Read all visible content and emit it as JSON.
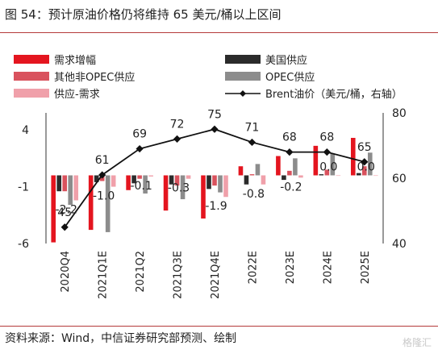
{
  "title": "图 54：预计原油价格仍将维持 65 美元/桶以上区间",
  "source": "资料来源：Wind，中信证券研究部预测、绘制",
  "watermark": "格隆汇",
  "colors": {
    "demand": "#e4151f",
    "us": "#2b2b2b",
    "nonopec": "#d9525d",
    "opec": "#8c8c8c",
    "balance": "#f0a0aa",
    "brent": "#111111",
    "rule": "#b43a3a"
  },
  "chart_data": {
    "type": "bar",
    "categories": [
      "2020Q4",
      "2021Q1E",
      "2021Q2",
      "2021Q3E",
      "2021Q4E",
      "2022E",
      "2023E",
      "2024E",
      "2025E"
    ],
    "y_left": {
      "ticks": [
        4,
        -1,
        -6
      ],
      "ylim": [
        -6,
        5.5
      ]
    },
    "y_right": {
      "ticks": [
        80,
        60,
        40
      ],
      "ylim": [
        40,
        80
      ]
    },
    "series": [
      {
        "name": "需求增幅",
        "key": "demand",
        "values": [
          -5.9,
          -4.8,
          -1.3,
          -3.1,
          -3.8,
          0.8,
          1.7,
          2.6,
          3.3
        ]
      },
      {
        "name": "美国供应",
        "key": "us",
        "values": [
          -1.4,
          -0.6,
          -0.7,
          -0.8,
          -1.2,
          -0.8,
          -0.4,
          0.1,
          0.2
        ]
      },
      {
        "name": "其他非OPEC供应",
        "key": "nonopec",
        "values": [
          -1.4,
          -0.5,
          -0.3,
          -0.9,
          -0.9,
          0.1,
          0.4,
          0.5,
          0.8
        ]
      },
      {
        "name": "OPEC供应",
        "key": "opec",
        "values": [
          -2.6,
          -5.0,
          -1.6,
          -2.1,
          -1.5,
          1.0,
          1.5,
          1.9,
          2.0
        ]
      },
      {
        "name": "供应-需求",
        "key": "balance",
        "values": [
          -2.2,
          -1.0,
          -0.1,
          -0.3,
          -1.9,
          -0.8,
          -0.2,
          0.0,
          0.0
        ]
      }
    ],
    "line": {
      "name": "Brent油价（美元/桶，右轴）",
      "values": [
        45,
        61,
        69,
        72,
        75,
        71,
        68,
        68,
        65
      ]
    },
    "data_labels": {
      "balance": [
        "-2.2",
        "-1.0",
        "-0.1",
        "-0.3",
        "-1.9",
        "-0.8",
        "-0.2",
        "0.0",
        "0.0"
      ],
      "brent": [
        "45",
        "61",
        "69",
        "72",
        "75",
        "71",
        "68",
        "68",
        "65"
      ]
    }
  }
}
